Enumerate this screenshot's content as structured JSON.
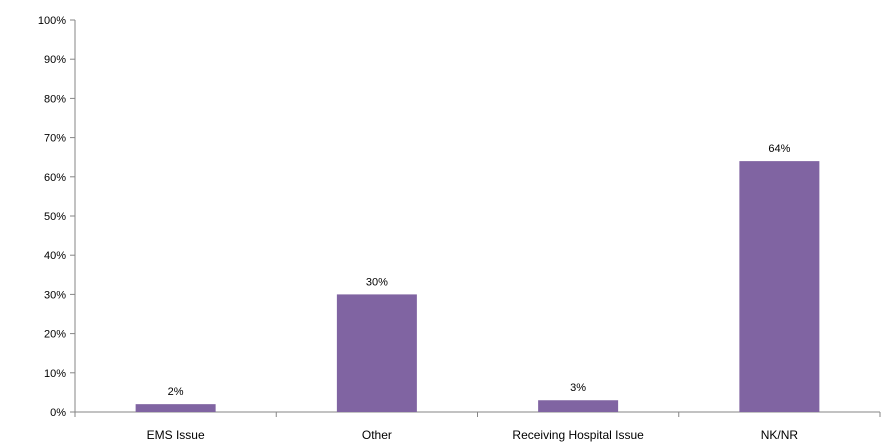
{
  "chart_data": {
    "type": "bar",
    "categories": [
      "EMS Issue",
      "Other",
      "Receiving Hospital Issue",
      "NK/NR"
    ],
    "values": [
      2,
      30,
      3,
      64
    ],
    "data_labels": [
      "2%",
      "30%",
      "3%",
      "64%"
    ],
    "ylim": [
      0,
      100
    ],
    "yticks": [
      0,
      10,
      20,
      30,
      40,
      50,
      60,
      70,
      80,
      90,
      100
    ],
    "ytick_labels": [
      "0%",
      "10%",
      "20%",
      "30%",
      "40%",
      "50%",
      "60%",
      "70%",
      "80%",
      "90%",
      "100%"
    ],
    "title": "",
    "xlabel": "",
    "ylabel": "",
    "grid": false,
    "legend": "none",
    "bar_color": "#8064a2"
  }
}
